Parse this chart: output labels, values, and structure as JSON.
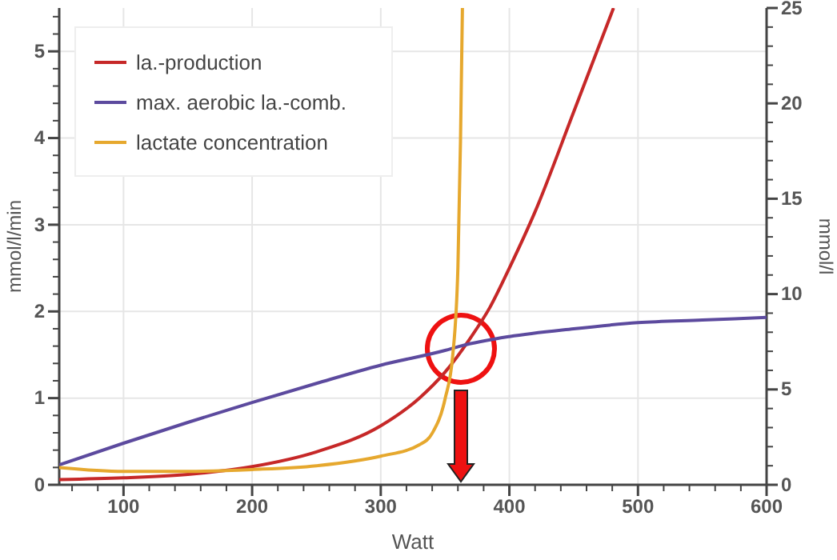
{
  "chart_data": {
    "type": "line",
    "xlabel": "Watt",
    "ylabel": "mmol/l/min",
    "y2label": "mmol/l",
    "xlim": [
      50,
      600
    ],
    "ylim": [
      0,
      5.5
    ],
    "y2lim": [
      0,
      25
    ],
    "xticks": [
      {
        "value": 60,
        "label": null
      },
      {
        "value": 80,
        "label": null
      },
      100,
      {
        "value": 120,
        "label": null
      },
      {
        "value": 140,
        "label": null
      },
      {
        "value": 160,
        "label": null
      },
      {
        "value": 180,
        "label": null
      },
      200,
      {
        "value": 220,
        "label": null
      },
      {
        "value": 240,
        "label": null
      },
      {
        "value": 260,
        "label": null
      },
      {
        "value": 280,
        "label": null
      },
      300,
      {
        "value": 320,
        "label": null
      },
      {
        "value": 340,
        "label": null
      },
      {
        "value": 360,
        "label": null
      },
      {
        "value": 380,
        "label": null
      },
      400,
      {
        "value": 420,
        "label": null
      },
      {
        "value": 440,
        "label": null
      },
      {
        "value": 460,
        "label": null
      },
      {
        "value": 480,
        "label": null
      },
      500,
      {
        "value": 520,
        "label": null
      },
      {
        "value": 540,
        "label": null
      },
      {
        "value": 560,
        "label": null
      },
      {
        "value": 580,
        "label": null
      },
      600
    ],
    "yticks": [
      0,
      {
        "value": 0.2,
        "label": null
      },
      {
        "value": 0.4,
        "label": null
      },
      {
        "value": 0.6,
        "label": null
      },
      {
        "value": 0.8,
        "label": null
      },
      1,
      {
        "value": 1.2,
        "label": null
      },
      {
        "value": 1.4,
        "label": null
      },
      {
        "value": 1.6,
        "label": null
      },
      {
        "value": 1.8,
        "label": null
      },
      2,
      {
        "value": 2.2,
        "label": null
      },
      {
        "value": 2.4,
        "label": null
      },
      {
        "value": 2.6,
        "label": null
      },
      {
        "value": 2.8,
        "label": null
      },
      3,
      {
        "value": 3.2,
        "label": null
      },
      {
        "value": 3.4,
        "label": null
      },
      {
        "value": 3.6,
        "label": null
      },
      {
        "value": 3.8,
        "label": null
      },
      4,
      {
        "value": 4.2,
        "label": null
      },
      {
        "value": 4.4,
        "label": null
      },
      {
        "value": 4.6,
        "label": null
      },
      {
        "value": 4.8,
        "label": null
      },
      5,
      {
        "value": 5.2,
        "label": null
      },
      {
        "value": 5.4,
        "label": null
      }
    ],
    "y2ticks": [
      0,
      {
        "value": 1,
        "label": null
      },
      {
        "value": 2,
        "label": null
      },
      {
        "value": 3,
        "label": null
      },
      {
        "value": 4,
        "label": null
      },
      5,
      {
        "value": 6,
        "label": null
      },
      {
        "value": 7,
        "label": null
      },
      {
        "value": 8,
        "label": null
      },
      {
        "value": 9,
        "label": null
      },
      10,
      {
        "value": 11,
        "label": null
      },
      {
        "value": 12,
        "label": null
      },
      {
        "value": 13,
        "label": null
      },
      {
        "value": 14,
        "label": null
      },
      15,
      {
        "value": 16,
        "label": null
      },
      {
        "value": 17,
        "label": null
      },
      {
        "value": 18,
        "label": null
      },
      {
        "value": 19,
        "label": null
      },
      20,
      {
        "value": 21,
        "label": null
      },
      {
        "value": 22,
        "label": null
      },
      {
        "value": 23,
        "label": null
      },
      {
        "value": 24,
        "label": null
      },
      25
    ],
    "grid": true,
    "legend": "top left",
    "marker": "none",
    "line_style": "solid",
    "series": [
      {
        "name": "la.-production",
        "color": "#c62828",
        "x": [
          50,
          100,
          150,
          200,
          250,
          300,
          330,
          350,
          370,
          385,
          400,
          420,
          450,
          481
        ],
        "values": [
          0.06,
          0.08,
          0.12,
          0.21,
          0.38,
          0.68,
          1.0,
          1.3,
          1.7,
          2.05,
          2.5,
          3.15,
          4.3,
          5.5
        ]
      },
      {
        "name": "max. aerobic la.-comb.",
        "color": "#5c4a9e",
        "x": [
          50,
          100,
          150,
          200,
          250,
          300,
          350,
          362,
          400,
          450,
          500,
          550,
          600
        ],
        "values": [
          0.23,
          0.48,
          0.72,
          0.95,
          1.17,
          1.38,
          1.55,
          1.6,
          1.71,
          1.8,
          1.87,
          1.9,
          1.93
        ]
      },
      {
        "name": "lactate concentration",
        "color": "#e6a82e",
        "axis": "y2",
        "x": [
          50,
          100,
          150,
          200,
          250,
          300,
          330,
          340,
          350,
          356,
          360,
          362,
          363.5
        ],
        "values": [
          0.9,
          0.7,
          0.7,
          0.8,
          1.0,
          1.5,
          2.1,
          2.7,
          4.5,
          6.8,
          11.4,
          18,
          25
        ]
      }
    ]
  }
}
